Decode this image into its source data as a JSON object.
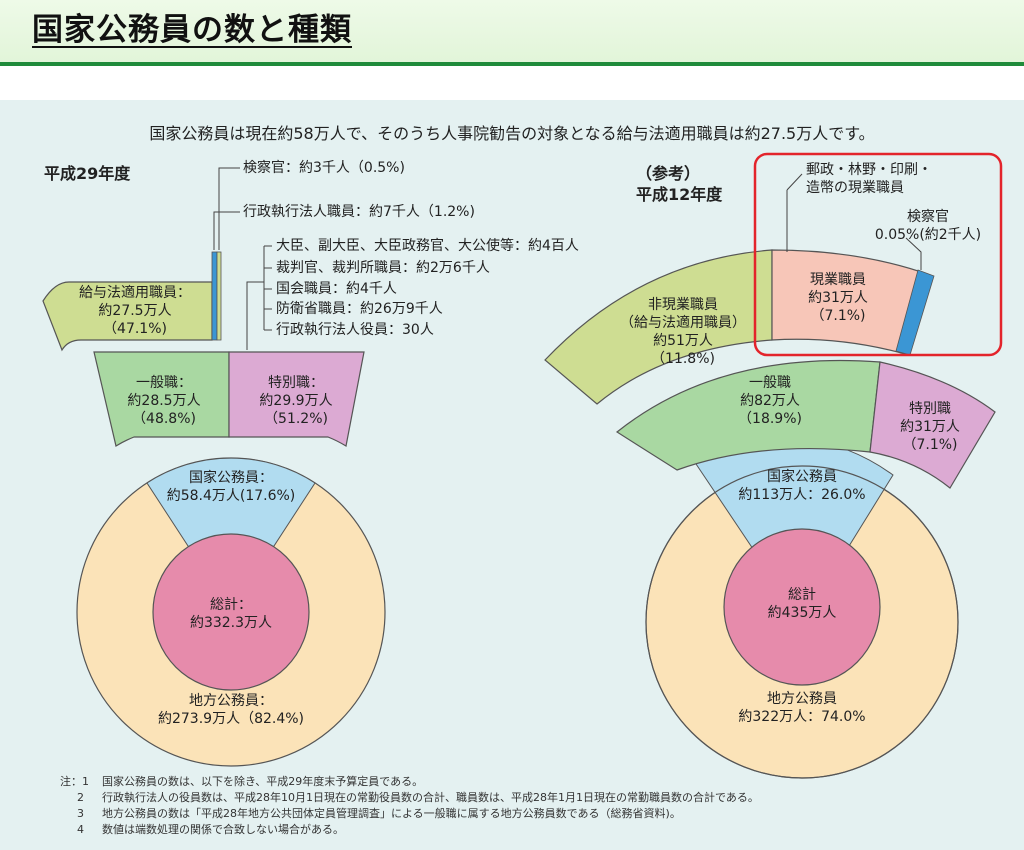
{
  "title": "国家公務員の数と種類",
  "lead": "国家公務員は現在約58万人で、そのうち人事院勧告の対象となる給与法適用職員は約27.5万人です。",
  "left": {
    "year": "平成29年度",
    "total": [
      "総計：",
      "約332.3万人"
    ],
    "national": [
      "国家公務員：",
      "約58.4万人(17.6%)"
    ],
    "local": [
      "地方公務員：",
      "約273.9万人（82.4%)"
    ],
    "general": [
      "一般職：",
      "約28.5万人",
      "（48.8%)"
    ],
    "special": [
      "特別職：",
      "約29.9万人",
      "（51.2%)"
    ],
    "salary_law": [
      "給与法適用職員：",
      "約27.5万人",
      "（47.1%)"
    ],
    "prosecutor": "検察官：約3千人（0.5%)",
    "admin_agency": "行政執行法人職員：約7千人（1.2%)",
    "special_list": [
      "大臣、副大臣、大臣政務官、大公使等：約4百人",
      "裁判官、裁判所職員：約2万6千人",
      "国会職員：約4千人",
      "防衛省職員：約26万9千人",
      "行政執行法人役員：30人"
    ]
  },
  "right": {
    "ref": "（参考）",
    "year": "平成12年度",
    "total": [
      "総計",
      "約435万人"
    ],
    "national": [
      "国家公務員",
      "約113万人：26.0%"
    ],
    "local": [
      "地方公務員",
      "約322万人：74.0%"
    ],
    "general": [
      "一般職",
      "約82万人",
      "（18.9%)"
    ],
    "special": [
      "特別職",
      "約31万人",
      "（7.1%)"
    ],
    "non_field": [
      "非現業職員",
      "（給与法適用職員）",
      "約51万人",
      "（11.8%)"
    ],
    "field": [
      "現業職員",
      "約31万人",
      "（7.1%)"
    ],
    "postal": [
      "郵政・林野・印刷・",
      "造幣の現業職員"
    ],
    "prosecutor": [
      "検察官",
      "0.05%(約2千人)"
    ]
  },
  "notes": [
    {
      "n": "注：1",
      "t": "国家公務員の数は、以下を除き、平成29年度末予算定員である。"
    },
    {
      "n": "2",
      "t": "行政執行法人の役員数は、平成28年10月1日現在の常勤役員数の合計、職員数は、平成28年1月1日現在の常勤職員数の合計である。"
    },
    {
      "n": "3",
      "t": "地方公務員の数は「平成28年地方公共団体定員管理調査」による一般職に属する地方公務員数である（総務省資料)。"
    },
    {
      "n": "4",
      "t": "数値は端数処理の関係で合致しない場合がある。"
    }
  ],
  "colors": {
    "local": "#fbe3b8",
    "national": "#b1dcf0",
    "total": "#e68bab",
    "general": "#a9d8a2",
    "special": "#dcaad3",
    "salary": "#cedd92",
    "field": "#f7c6b8",
    "accent_blue": "#3b96d4",
    "highlight": "#e3242b",
    "header_rule": "#1f8b3a"
  }
}
